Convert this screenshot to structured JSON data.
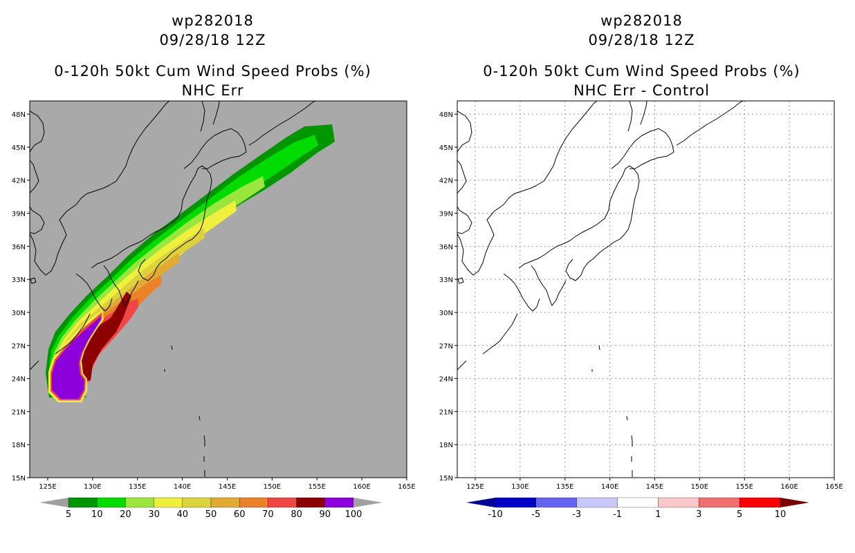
{
  "panels": [
    {
      "header_line1": "wp282018",
      "header_line2": "09/28/18 12Z",
      "title_line1": "0-120h 50kt Cum Wind Speed Probs (%)",
      "title_line2": "NHC Err",
      "background": "#a9a9a9",
      "colorbar": {
        "labels": [
          "5",
          "10",
          "20",
          "30",
          "40",
          "50",
          "60",
          "70",
          "80",
          "90",
          "100"
        ],
        "colors": [
          "#009600",
          "#00dc00",
          "#9be63c",
          "#f0f03c",
          "#dcd23c",
          "#e1aa32",
          "#eb8228",
          "#f04646",
          "#8c0000",
          "#8c00dc"
        ],
        "end_color_low": "#a0a0a0",
        "end_color_high": "#a0a0a0"
      }
    },
    {
      "header_line1": "wp282018",
      "header_line2": "09/28/18 12Z",
      "title_line1": "0-120h 50kt Cum Wind Speed Probs (%)",
      "title_line2": "NHC Err - Control",
      "background": "#ffffff",
      "colorbar": {
        "labels": [
          "-10",
          "-5",
          "-3",
          "-1",
          "1",
          "3",
          "5",
          "10"
        ],
        "colors": [
          "#0000c8",
          "#6464f0",
          "#c8c8fa",
          "#ffffff",
          "#fac8c8",
          "#f06e6e",
          "#ff0000"
        ],
        "end_color_low": "#000096",
        "end_color_high": "#780000"
      }
    }
  ],
  "axes": {
    "lon_labels": [
      "125E",
      "130E",
      "135E",
      "140E",
      "145E",
      "150E",
      "155E",
      "160E",
      "165E"
    ],
    "lat_labels": [
      "15N",
      "18N",
      "21N",
      "24N",
      "27N",
      "30N",
      "33N",
      "36N",
      "39N",
      "42N",
      "45N",
      "48N"
    ],
    "lon_values": [
      125,
      130,
      135,
      140,
      145,
      150,
      155,
      160,
      165
    ],
    "lat_values": [
      15,
      18,
      21,
      24,
      27,
      30,
      33,
      36,
      39,
      42,
      45,
      48
    ],
    "lon_range": [
      123,
      165
    ],
    "lat_range": [
      15,
      49.2
    ]
  }
}
